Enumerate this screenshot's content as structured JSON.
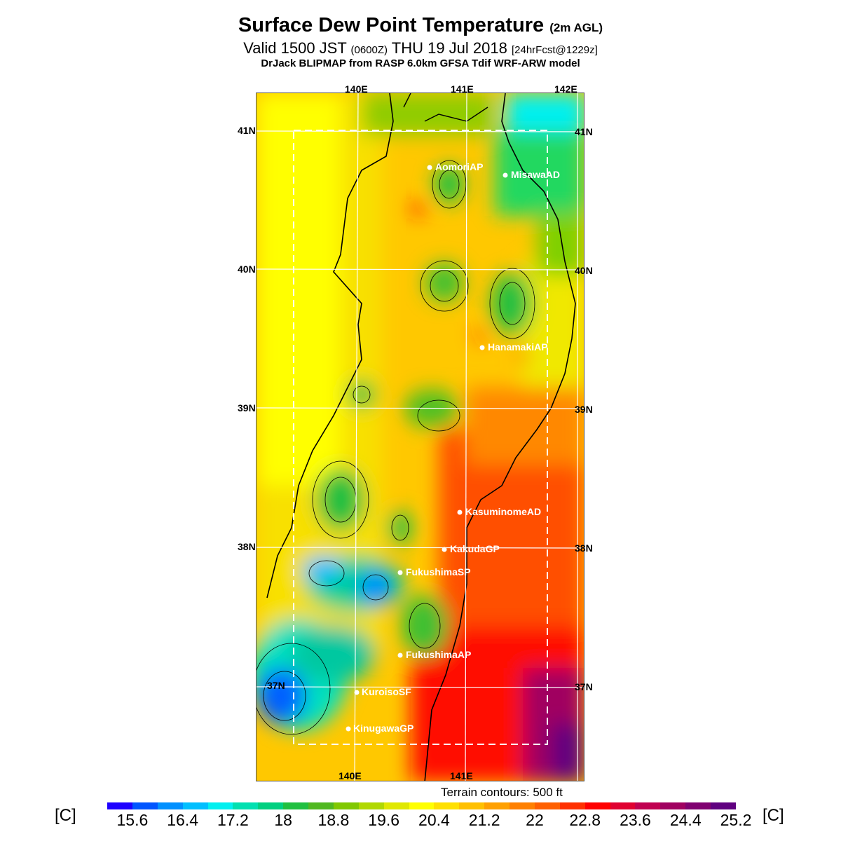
{
  "header": {
    "title": "Surface Dew Point Temperature",
    "title_suffix": "(2m AGL)",
    "valid_prefix": "Valid 1500 JST",
    "valid_utc": "(0600Z)",
    "valid_date": "THU 19 Jul 2018",
    "forecast": "[24hrFcst@1229z]",
    "model": "DrJack BLIPMAP from RASP 6.0km GFSA Tdif WRF-ARW model"
  },
  "map": {
    "lon_labels_top": [
      "140E",
      "141E",
      "142E"
    ],
    "lon_labels_bottom": [
      "140E",
      "141E"
    ],
    "lat_labels": [
      "41N",
      "40N",
      "39N",
      "38N",
      "37N"
    ],
    "stations": [
      {
        "name": "AomoriAP"
      },
      {
        "name": "MisawaAD"
      },
      {
        "name": "HanamakiAP"
      },
      {
        "name": "KasuminomeAD"
      },
      {
        "name": "KakudaGP"
      },
      {
        "name": "FukushimaSP"
      },
      {
        "name": "FukushimaAP"
      },
      {
        "name": "KuroisoSF"
      },
      {
        "name": "KinugawaGP"
      }
    ]
  },
  "legend": {
    "terrain_note": "Terrain contours: 500 ft",
    "unit": "[C]",
    "ticks": [
      "15.6",
      "16.4",
      "17.2",
      "18",
      "18.8",
      "19.6",
      "20.4",
      "21.2",
      "22",
      "22.8",
      "23.6",
      "24.4",
      "25.2"
    ],
    "colors": [
      "#1e00ff",
      "#0055ff",
      "#0090ff",
      "#00bfff",
      "#00f0f0",
      "#00e0b0",
      "#00d080",
      "#20c040",
      "#50b820",
      "#80c800",
      "#b0d800",
      "#e0e800",
      "#ffff00",
      "#ffe000",
      "#ffc000",
      "#ffa000",
      "#ff8000",
      "#ff6000",
      "#ff3000",
      "#ff0000",
      "#e00030",
      "#c00050",
      "#a00060",
      "#800070",
      "#600080"
    ]
  }
}
